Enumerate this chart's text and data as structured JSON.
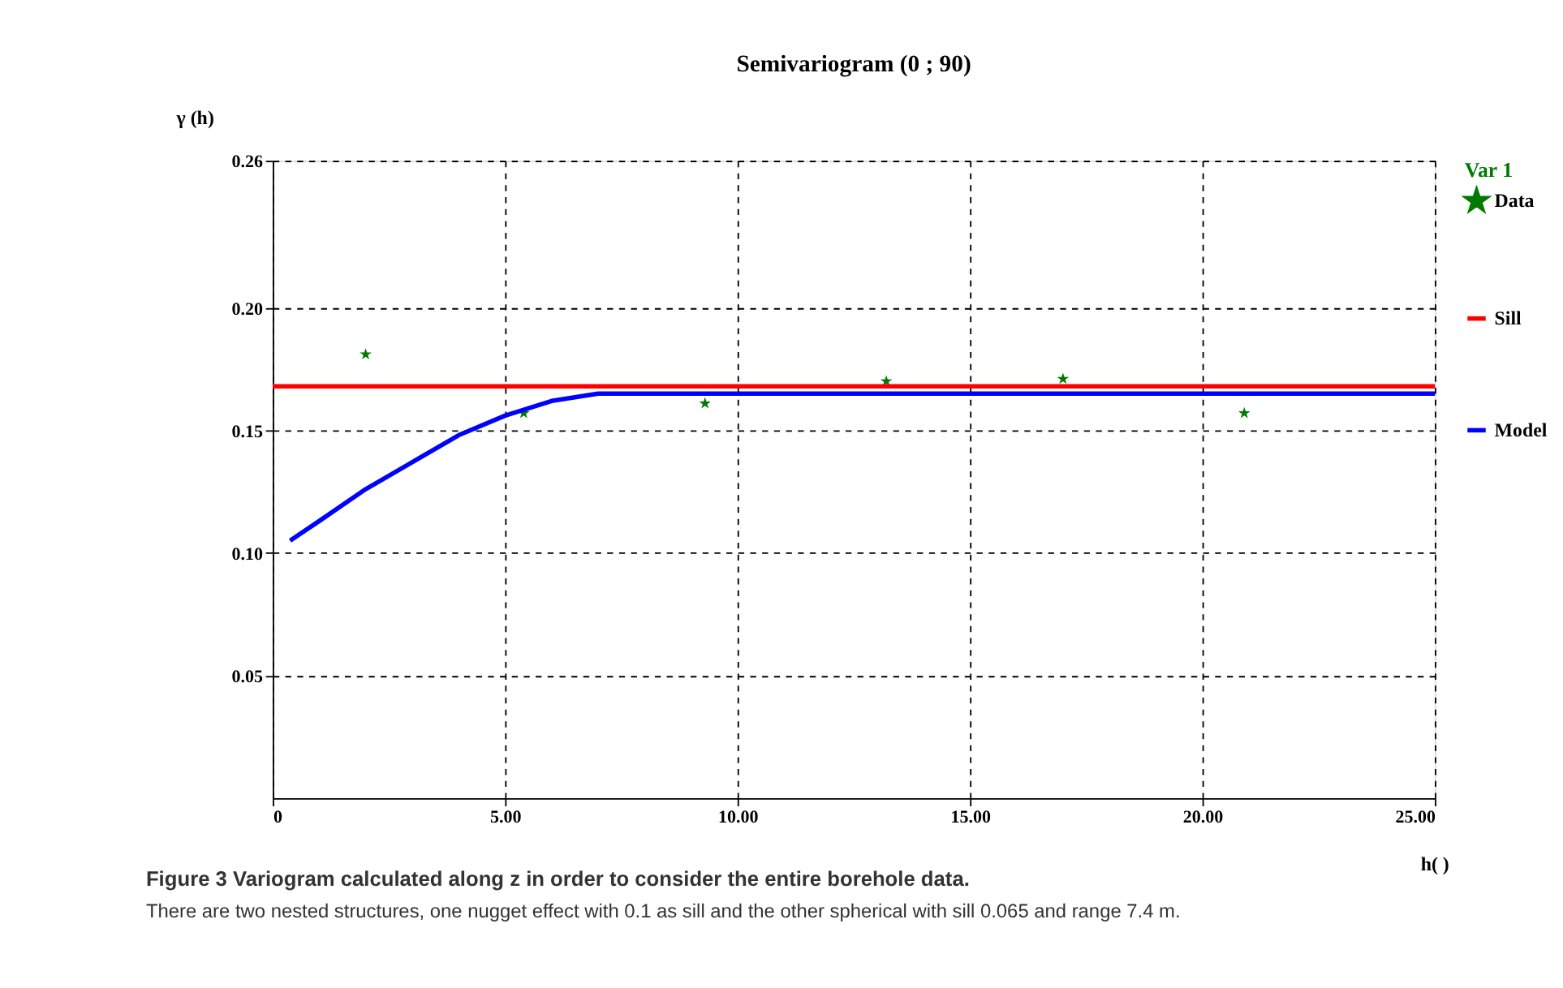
{
  "chart_data": {
    "type": "scatter",
    "title": "Semivariogram (0 ;   90)",
    "xlabel": "h( )",
    "ylabel": "γ (h)",
    "legend_title": "Var 1",
    "legend": "right",
    "xlim": [
      0,
      25
    ],
    "ylim": [
      0,
      0.26
    ],
    "xticks": [
      0,
      {
        "value": 5,
        "label": "5.00"
      },
      {
        "value": 10,
        "label": "10.00"
      },
      {
        "value": 15,
        "label": "15.00"
      },
      {
        "value": 20,
        "label": "20.00"
      },
      {
        "value": 25,
        "label": "25.00"
      }
    ],
    "yticks": [
      {
        "value": 0.05,
        "label": "0.05"
      },
      {
        "value": 0.1,
        "label": "0.10"
      },
      {
        "value": 0.15,
        "label": "0.15"
      },
      {
        "value": 0.2,
        "label": "0.20"
      },
      {
        "value": 0.26,
        "label": "0.26"
      }
    ],
    "grid": true,
    "series": [
      {
        "name": "Data",
        "marker": "star",
        "color": "#007a00",
        "x": [
          2.0,
          5.4,
          9.3,
          13.2,
          17.0,
          20.9
        ],
        "values": [
          0.181,
          0.157,
          0.161,
          0.17,
          0.171,
          0.157
        ]
      },
      {
        "name": "Sill",
        "type": "line",
        "line_style": "solid",
        "color": "#ff0000",
        "x": [
          0,
          25
        ],
        "values": [
          0.168,
          0.168
        ]
      },
      {
        "name": "Model",
        "type": "line",
        "line_style": "solid",
        "color": "#0000ff",
        "x": [
          0.375,
          1,
          2,
          3,
          4,
          5,
          6,
          7,
          7.4,
          25
        ],
        "values": [
          0.105,
          0.113,
          0.126,
          0.137,
          0.148,
          0.156,
          0.162,
          0.165,
          0.165,
          0.165
        ]
      }
    ],
    "annotations": [
      "Figure 3 Variogram calculated along z in order to consider the entire borehole data.",
      "There are two nested structures, one nugget effect with 0.1 as sill and the other spherical with sill 0.065 and range 7.4 m."
    ]
  }
}
